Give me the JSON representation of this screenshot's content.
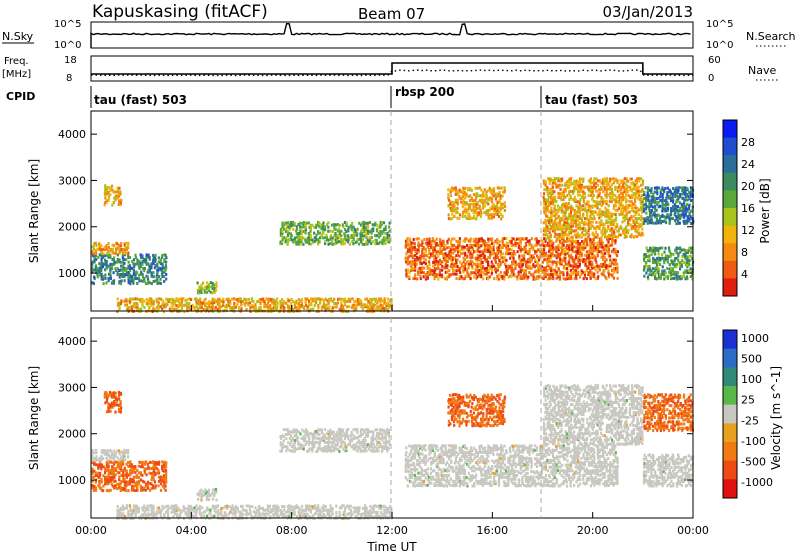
{
  "header": {
    "radar": "Kapuskasing (fitACF)",
    "beam": "Beam 07",
    "date": "03/Jan/2013"
  },
  "top_panels": {
    "nsky_label": "N.Sky",
    "nsky_ticks": [
      "10^5",
      "10^0"
    ],
    "nsearch_label": "N.Search",
    "freq_label": "Freq.",
    "freq_unit": "[MHz]",
    "freq_ticks": [
      "18",
      "8"
    ],
    "nave_label": "Nave",
    "nave_ticks": [
      "60",
      "0"
    ],
    "cpid_label": "CPID",
    "cpid_segments": [
      {
        "label": "tau (fast) 503",
        "start_h": 0,
        "end_h": 12
      },
      {
        "label": "rbsp 200",
        "start_h": 12,
        "end_h": 18
      },
      {
        "label": "tau (fast) 503",
        "start_h": 18,
        "end_h": 24
      }
    ]
  },
  "chart_data": [
    {
      "type": "heatmap",
      "name": "power",
      "ylabel": "Slant Range [km]",
      "xlabel": "Time UT",
      "x_range_hours": [
        0,
        24
      ],
      "ylim": [
        180,
        4500
      ],
      "yticks": [
        1000,
        2000,
        3000,
        4000
      ],
      "xticks": [
        "00:00",
        "04:00",
        "08:00",
        "12:00",
        "16:00",
        "20:00",
        "00:00"
      ],
      "colorbar": {
        "label": "Power [dB]",
        "ticks": [
          "4",
          "8",
          "12",
          "16",
          "20",
          "24",
          "28"
        ],
        "colors": [
          "#0a1cf0",
          "#1f4fd0",
          "#2a6e9a",
          "#3c8a60",
          "#5aa83a",
          "#a6c41c",
          "#f0b40a",
          "#f58a10",
          "#f05a12",
          "#e01e10"
        ]
      },
      "echo_regions": [
        {
          "t0": 0.0,
          "t1": 3.0,
          "r0": 800,
          "r1": 1450,
          "value": 0.7
        },
        {
          "t0": 0.0,
          "t1": 1.5,
          "r0": 1450,
          "r1": 1700,
          "value": 0.3
        },
        {
          "t0": 0.5,
          "t1": 1.2,
          "r0": 2500,
          "r1": 2950,
          "value": 0.3
        },
        {
          "t0": 4.2,
          "t1": 5.0,
          "r0": 600,
          "r1": 850,
          "value": 0.5
        },
        {
          "t0": 7.5,
          "t1": 11.9,
          "r0": 1650,
          "r1": 2150,
          "value": 0.55
        },
        {
          "t0": 14.2,
          "t1": 16.5,
          "r0": 2200,
          "r1": 2900,
          "value": 0.3
        },
        {
          "t0": 12.5,
          "t1": 21.0,
          "r0": 900,
          "r1": 1800,
          "value": 0.15
        },
        {
          "t0": 18.0,
          "t1": 22.0,
          "r0": 1800,
          "r1": 3100,
          "value": 0.3
        },
        {
          "t0": 22.0,
          "t1": 24.0,
          "r0": 2100,
          "r1": 2900,
          "value": 0.75
        },
        {
          "t0": 22.0,
          "t1": 24.0,
          "r0": 900,
          "r1": 1600,
          "value": 0.6
        },
        {
          "t0": 1.0,
          "t1": 12.0,
          "r0": 200,
          "r1": 500,
          "value": 0.3
        }
      ]
    },
    {
      "type": "heatmap",
      "name": "velocity",
      "ylabel": "Slant Range [km]",
      "xlabel": "Time UT",
      "x_range_hours": [
        0,
        24
      ],
      "ylim": [
        180,
        4500
      ],
      "yticks": [
        1000,
        2000,
        3000,
        4000
      ],
      "xticks": [
        "00:00",
        "04:00",
        "08:00",
        "12:00",
        "16:00",
        "20:00",
        "00:00"
      ],
      "colorbar": {
        "label": "Velocity [m s^-1]",
        "ticks": [
          "1000",
          "500",
          "100",
          "25",
          "-25",
          "-100",
          "-500",
          "-1000"
        ],
        "colors": [
          "#1a30d0",
          "#2a6cc8",
          "#2f8a7a",
          "#5ab84a",
          "#c8c8c0",
          "#e9a020",
          "#f07a14",
          "#f04a14",
          "#e01010"
        ]
      },
      "echo_regions": [
        {
          "t0": 0.0,
          "t1": 3.0,
          "r0": 800,
          "r1": 1450,
          "value": -0.6
        },
        {
          "t0": 0.0,
          "t1": 1.5,
          "r0": 1450,
          "r1": 1700,
          "value": 0.0
        },
        {
          "t0": 0.5,
          "t1": 1.2,
          "r0": 2500,
          "r1": 2950,
          "value": -0.6
        },
        {
          "t0": 4.2,
          "t1": 5.0,
          "r0": 600,
          "r1": 850,
          "value": 0.0
        },
        {
          "t0": 7.5,
          "t1": 11.9,
          "r0": 1650,
          "r1": 2150,
          "value": 0.0
        },
        {
          "t0": 14.2,
          "t1": 16.5,
          "r0": 2200,
          "r1": 2900,
          "value": -0.6
        },
        {
          "t0": 12.5,
          "t1": 21.0,
          "r0": 900,
          "r1": 1800,
          "value": 0.0
        },
        {
          "t0": 18.0,
          "t1": 22.0,
          "r0": 1800,
          "r1": 3100,
          "value": 0.0
        },
        {
          "t0": 22.0,
          "t1": 24.0,
          "r0": 2100,
          "r1": 2900,
          "value": -0.6
        },
        {
          "t0": 22.0,
          "t1": 24.0,
          "r0": 900,
          "r1": 1600,
          "value": 0.0
        },
        {
          "t0": 1.0,
          "t1": 12.0,
          "r0": 200,
          "r1": 500,
          "value": 0.0
        }
      ]
    }
  ]
}
